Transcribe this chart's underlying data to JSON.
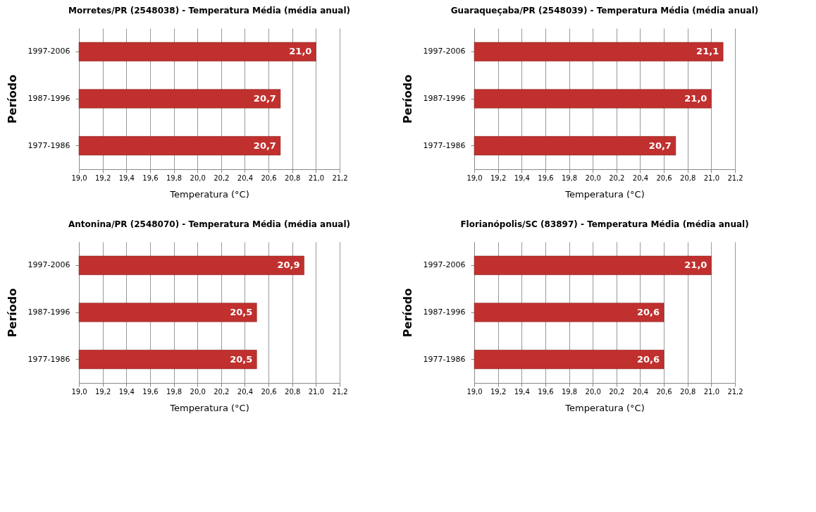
{
  "chart_data": [
    {
      "type": "bar",
      "orientation": "horizontal",
      "title": "Morretes/PR (2548038)  - Temperatura Média (média anual)",
      "xlabel": "Temperatura (°C)",
      "ylabel": "Período",
      "categories": [
        "1997-2006",
        "1987-1996",
        "1977-1986"
      ],
      "values": [
        21.0,
        20.7,
        20.7
      ],
      "value_labels": [
        "21,0",
        "20,7",
        "20,7"
      ],
      "color": "#c0302e",
      "xlim": [
        19,
        21.2
      ],
      "xticks": [
        {
          "value": 19,
          "label": "19,0"
        },
        {
          "value": 19.2,
          "label": "19,2"
        },
        {
          "value": 19.4,
          "label": "19,4"
        },
        {
          "value": 19.6,
          "label": "19,6"
        },
        {
          "value": 19.8,
          "label": "19,8"
        },
        {
          "value": 20,
          "label": "20,0"
        },
        {
          "value": 20.2,
          "label": "20,2"
        },
        {
          "value": 20.4,
          "label": "20,4"
        },
        {
          "value": 20.6,
          "label": "20,6"
        },
        {
          "value": 20.8,
          "label": "20,8"
        },
        {
          "value": 21,
          "label": "21,0"
        },
        {
          "value": 21.2,
          "label": "21,2"
        }
      ],
      "grid": "x"
    },
    {
      "type": "bar",
      "orientation": "horizontal",
      "title": "Guaraqueçaba/PR  (2548039) - Temperatura Média (média anual)",
      "xlabel": "Temperatura (°C)",
      "ylabel": "Período",
      "categories": [
        "1997-2006",
        "1987-1996",
        "1977-1986"
      ],
      "values": [
        21.1,
        21.0,
        20.7
      ],
      "value_labels": [
        "21,1",
        "21,0",
        "20,7"
      ],
      "color": "#c0302e",
      "xlim": [
        19,
        21.2
      ],
      "xticks": [
        {
          "value": 19,
          "label": "19,0"
        },
        {
          "value": 19.2,
          "label": "19,2"
        },
        {
          "value": 19.4,
          "label": "19,4"
        },
        {
          "value": 19.6,
          "label": "19,6"
        },
        {
          "value": 19.8,
          "label": "19,8"
        },
        {
          "value": 20,
          "label": "20,0"
        },
        {
          "value": 20.2,
          "label": "20,2"
        },
        {
          "value": 20.4,
          "label": "20,4"
        },
        {
          "value": 20.6,
          "label": "20,6"
        },
        {
          "value": 20.8,
          "label": "20,8"
        },
        {
          "value": 21,
          "label": "21,0"
        },
        {
          "value": 21.2,
          "label": "21,2"
        }
      ],
      "grid": "x"
    },
    {
      "type": "bar",
      "orientation": "horizontal",
      "title": "Antonina/PR (2548070)  - Temperatura Média (média anual)",
      "xlabel": "Temperatura (°C)",
      "ylabel": "Período",
      "categories": [
        "1997-2006",
        "1987-1996",
        "1977-1986"
      ],
      "values": [
        20.9,
        20.5,
        20.5
      ],
      "value_labels": [
        "20,9",
        "20,5",
        "20,5"
      ],
      "color": "#c0302e",
      "xlim": [
        19,
        21.2
      ],
      "xticks": [
        {
          "value": 19,
          "label": "19,0"
        },
        {
          "value": 19.2,
          "label": "19,2"
        },
        {
          "value": 19.4,
          "label": "19,4"
        },
        {
          "value": 19.6,
          "label": "19,6"
        },
        {
          "value": 19.8,
          "label": "19,8"
        },
        {
          "value": 20,
          "label": "20,0"
        },
        {
          "value": 20.2,
          "label": "20,2"
        },
        {
          "value": 20.4,
          "label": "20,4"
        },
        {
          "value": 20.6,
          "label": "20,6"
        },
        {
          "value": 20.8,
          "label": "20,8"
        },
        {
          "value": 21,
          "label": "21,0"
        },
        {
          "value": 21.2,
          "label": "21,2"
        }
      ],
      "grid": "x"
    },
    {
      "type": "bar",
      "orientation": "horizontal",
      "title": "Florianópolis/SC (83897) - Temperatura Média (média anual)",
      "xlabel": "Temperatura (°C)",
      "ylabel": "Período",
      "categories": [
        "1997-2006",
        "1987-1996",
        "1977-1986"
      ],
      "values": [
        21.0,
        20.6,
        20.6
      ],
      "value_labels": [
        "21,0",
        "20,6",
        "20,6"
      ],
      "color": "#c0302e",
      "xlim": [
        19,
        21.2
      ],
      "xticks": [
        {
          "value": 19,
          "label": "19,0"
        },
        {
          "value": 19.2,
          "label": "19,2"
        },
        {
          "value": 19.4,
          "label": "19,4"
        },
        {
          "value": 19.6,
          "label": "19,6"
        },
        {
          "value": 19.8,
          "label": "19,8"
        },
        {
          "value": 20,
          "label": "20,0"
        },
        {
          "value": 20.2,
          "label": "20,2"
        },
        {
          "value": 20.4,
          "label": "20,4"
        },
        {
          "value": 20.6,
          "label": "20,6"
        },
        {
          "value": 20.8,
          "label": "20,8"
        },
        {
          "value": 21,
          "label": "21,0"
        },
        {
          "value": 21.2,
          "label": "21,2"
        }
      ],
      "grid": "x"
    }
  ]
}
